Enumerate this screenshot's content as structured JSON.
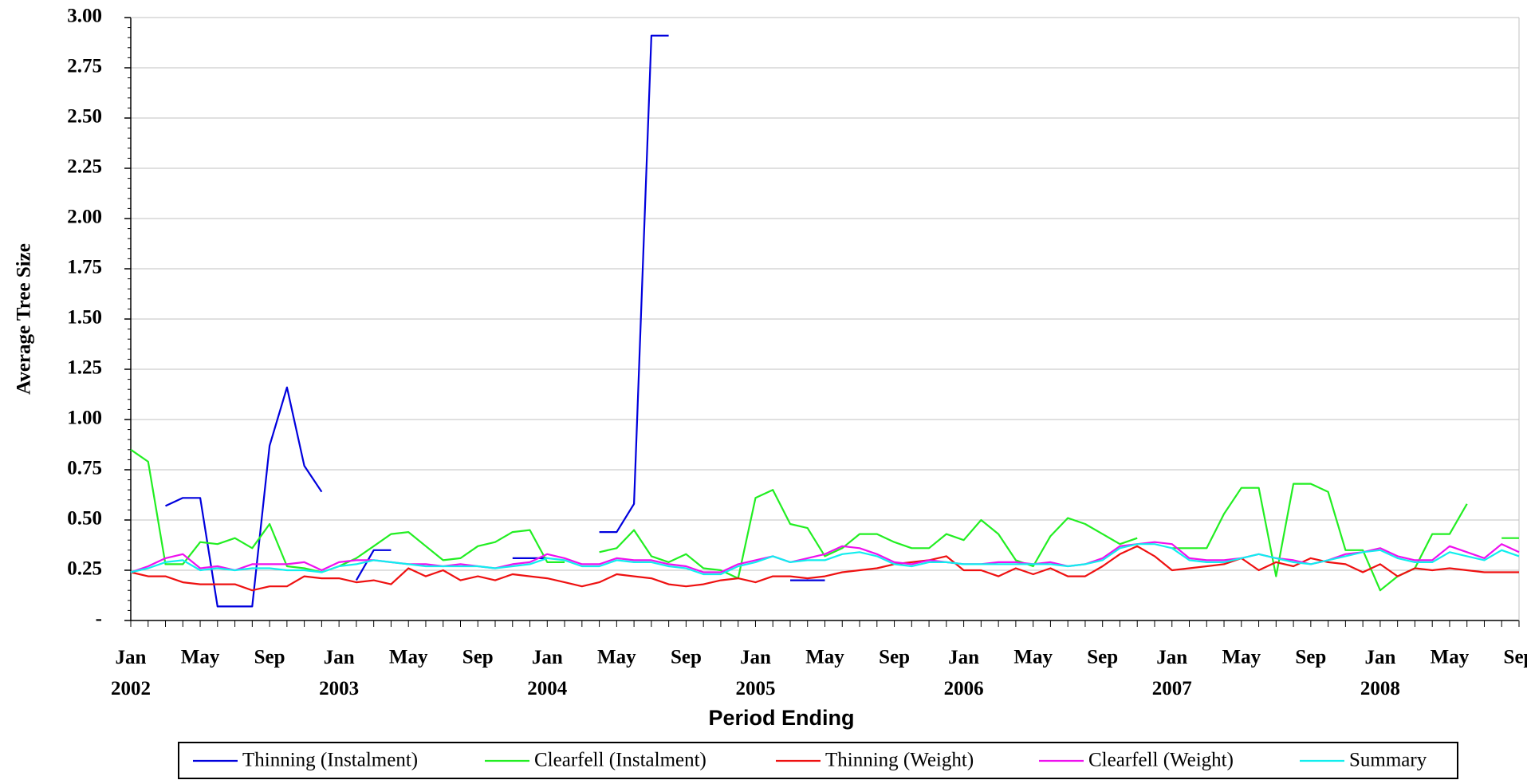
{
  "chart_data": {
    "type": "line",
    "x_label": "Period Ending",
    "y_label": "Average Tree Size",
    "categories": [
      "Jan 2002",
      null,
      null,
      null,
      "May",
      null,
      null,
      null,
      "Sep",
      null,
      null,
      null,
      "Jan 2003",
      null,
      null,
      null,
      "May",
      null,
      null,
      null,
      "Sep",
      null,
      null,
      null,
      "Jan 2004",
      null,
      null,
      null,
      "May",
      null,
      null,
      null,
      "Sep",
      null,
      null,
      null,
      "Jan 2005",
      null,
      null,
      null,
      "May",
      null,
      null,
      null,
      "Sep",
      null,
      null,
      null,
      "Jan 2006",
      null,
      null,
      null,
      "May",
      null,
      null,
      null,
      "Sep",
      null,
      null,
      null,
      "Jan 2007",
      null,
      null,
      null,
      "May",
      null,
      null,
      null,
      "Sep",
      null,
      null,
      null,
      "Jan 2008",
      null,
      null,
      null,
      "May",
      null,
      null,
      null,
      "Sep"
    ],
    "ylim": [
      0,
      3
    ],
    "yticks": [
      {
        "value": 0,
        "label": "-"
      },
      {
        "value": 0.25,
        "label": "0.25"
      },
      {
        "value": 0.5,
        "label": "0.50"
      },
      {
        "value": 0.75,
        "label": "0.75"
      },
      {
        "value": 1,
        "label": "1.00"
      },
      {
        "value": 1.25,
        "label": "1.25"
      },
      {
        "value": 1.5,
        "label": "1.50"
      },
      {
        "value": 1.75,
        "label": "1.75"
      },
      {
        "value": 2,
        "label": "2.00"
      },
      {
        "value": 2.25,
        "label": "2.25"
      },
      {
        "value": 2.5,
        "label": "2.50"
      },
      {
        "value": 2.75,
        "label": "2.75"
      },
      {
        "value": 3,
        "label": "3.00"
      }
    ],
    "grid": true,
    "legend": "bottom",
    "series": [
      {
        "name": "Thinning (Instalment)",
        "color": "#0000dd",
        "values": [
          null,
          null,
          0.57,
          0.61,
          0.61,
          0.07,
          0.07,
          0.07,
          0.87,
          1.16,
          0.77,
          0.64,
          null,
          0.2,
          0.35,
          0.35,
          null,
          null,
          null,
          null,
          null,
          null,
          0.31,
          0.31,
          0.31,
          null,
          null,
          0.44,
          0.44,
          0.58,
          2.91,
          2.91,
          null,
          null,
          null,
          null,
          null,
          null,
          0.2,
          0.2,
          0.2,
          null,
          null,
          null,
          null,
          null,
          null,
          null,
          null,
          null,
          null,
          null,
          null,
          null,
          null,
          null,
          null,
          null,
          null,
          null,
          null,
          null,
          null,
          null,
          null,
          null,
          null,
          null,
          null,
          null,
          null,
          null,
          null,
          null,
          null,
          null,
          null,
          null,
          null,
          null,
          null
        ]
      },
      {
        "name": "Clearfell (Instalment)",
        "color": "#22ee22",
        "values": [
          0.85,
          0.79,
          0.28,
          0.28,
          0.39,
          0.38,
          0.41,
          0.36,
          0.48,
          0.27,
          0.26,
          0.24,
          0.27,
          0.31,
          0.37,
          0.43,
          0.44,
          0.37,
          0.3,
          0.31,
          0.37,
          0.39,
          0.44,
          0.45,
          0.29,
          0.29,
          null,
          0.34,
          0.36,
          0.45,
          0.32,
          0.29,
          0.33,
          0.26,
          0.25,
          0.21,
          0.61,
          0.65,
          0.48,
          0.46,
          0.32,
          0.36,
          0.43,
          0.43,
          0.39,
          0.36,
          0.36,
          0.43,
          0.4,
          0.5,
          0.43,
          0.3,
          0.27,
          0.42,
          0.51,
          0.48,
          0.43,
          0.38,
          0.41,
          null,
          0.36,
          0.36,
          0.36,
          0.53,
          0.66,
          0.66,
          0.22,
          0.68,
          0.68,
          0.64,
          0.35,
          0.35,
          0.15,
          0.22,
          0.26,
          0.43,
          0.43,
          0.58,
          null,
          0.41,
          0.41
        ]
      },
      {
        "name": "Thinning (Weight)",
        "color": "#ee1111",
        "values": [
          0.24,
          0.22,
          0.22,
          0.19,
          0.18,
          0.18,
          0.18,
          0.15,
          0.17,
          0.17,
          0.22,
          0.21,
          0.21,
          0.19,
          0.2,
          0.18,
          0.26,
          0.22,
          0.25,
          0.2,
          0.22,
          0.2,
          0.23,
          0.22,
          0.21,
          0.19,
          0.17,
          0.19,
          0.23,
          0.22,
          0.21,
          0.18,
          0.17,
          0.18,
          0.2,
          0.21,
          0.19,
          0.22,
          0.22,
          0.21,
          0.22,
          0.24,
          0.25,
          0.26,
          0.28,
          0.29,
          0.3,
          0.32,
          0.25,
          0.25,
          0.22,
          0.26,
          0.23,
          0.26,
          0.22,
          0.22,
          0.27,
          0.33,
          0.37,
          0.32,
          0.25,
          0.26,
          0.27,
          0.28,
          0.31,
          0.25,
          0.29,
          0.27,
          0.31,
          0.29,
          0.28,
          0.24,
          0.28,
          0.22,
          0.26,
          0.25,
          0.26,
          0.25,
          0.24,
          0.24,
          0.24
        ]
      },
      {
        "name": "Clearfell (Weight)",
        "color": "#ee11ee",
        "values": [
          0.24,
          0.27,
          0.31,
          0.33,
          0.26,
          0.27,
          0.25,
          0.28,
          0.28,
          0.28,
          0.29,
          0.25,
          0.29,
          0.3,
          0.3,
          0.29,
          0.28,
          0.28,
          0.27,
          0.28,
          0.27,
          0.26,
          0.28,
          0.29,
          0.33,
          0.31,
          0.28,
          0.28,
          0.31,
          0.3,
          0.3,
          0.28,
          0.27,
          0.24,
          0.24,
          0.28,
          0.3,
          0.32,
          0.29,
          0.31,
          0.33,
          0.37,
          0.36,
          0.33,
          0.29,
          0.28,
          0.3,
          0.29,
          0.28,
          0.28,
          0.29,
          0.29,
          0.28,
          0.29,
          0.27,
          0.28,
          0.31,
          0.37,
          0.38,
          0.39,
          0.38,
          0.31,
          0.3,
          0.3,
          0.31,
          0.33,
          0.31,
          0.3,
          0.28,
          0.3,
          0.33,
          0.34,
          0.36,
          0.32,
          0.3,
          0.3,
          0.37,
          0.34,
          0.31,
          0.38,
          0.34
        ]
      },
      {
        "name": "Summary",
        "color": "#11eeee",
        "values": [
          0.24,
          0.26,
          0.29,
          0.3,
          0.25,
          0.26,
          0.25,
          0.26,
          0.26,
          0.25,
          0.25,
          0.24,
          0.27,
          0.28,
          0.3,
          0.29,
          0.28,
          0.27,
          0.27,
          0.27,
          0.27,
          0.26,
          0.27,
          0.28,
          0.31,
          0.3,
          0.27,
          0.27,
          0.3,
          0.29,
          0.29,
          0.27,
          0.26,
          0.23,
          0.23,
          0.27,
          0.29,
          0.32,
          0.29,
          0.3,
          0.3,
          0.33,
          0.34,
          0.32,
          0.28,
          0.27,
          0.29,
          0.29,
          0.28,
          0.28,
          0.28,
          0.28,
          0.28,
          0.28,
          0.27,
          0.28,
          0.3,
          0.36,
          0.38,
          0.38,
          0.36,
          0.3,
          0.29,
          0.29,
          0.31,
          0.33,
          0.31,
          0.29,
          0.28,
          0.3,
          0.32,
          0.34,
          0.35,
          0.31,
          0.29,
          0.29,
          0.34,
          0.32,
          0.3,
          0.35,
          0.32
        ]
      }
    ]
  }
}
